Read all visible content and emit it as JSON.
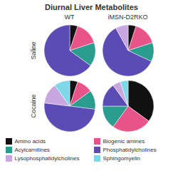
{
  "chart_data": {
    "type": "pie",
    "title": "Diurnal Liver Metabolites",
    "col_labels": [
      "WT",
      "iMSN-D2RKO"
    ],
    "row_labels": [
      "Saline",
      "Cocaine"
    ],
    "categories": [
      "Amino acids",
      "Biogenic amines",
      "Acylcarnitines",
      "Phosphatidylcholines",
      "Lysophosphatidylcholines",
      "Sphingomyelin"
    ],
    "colors": [
      "#111111",
      "#e8538a",
      "#2a9d8f",
      "#5b4bb5",
      "#c9a6e0",
      "#7fd8e8"
    ],
    "pies": [
      [
        5,
        15,
        15,
        65,
        0,
        0
      ],
      [
        5,
        15,
        12,
        60,
        8,
        0
      ],
      [
        5,
        10,
        12,
        50,
        13,
        10
      ],
      [
        35,
        25,
        15,
        15,
        5,
        5
      ]
    ],
    "legend": "bottom"
  }
}
